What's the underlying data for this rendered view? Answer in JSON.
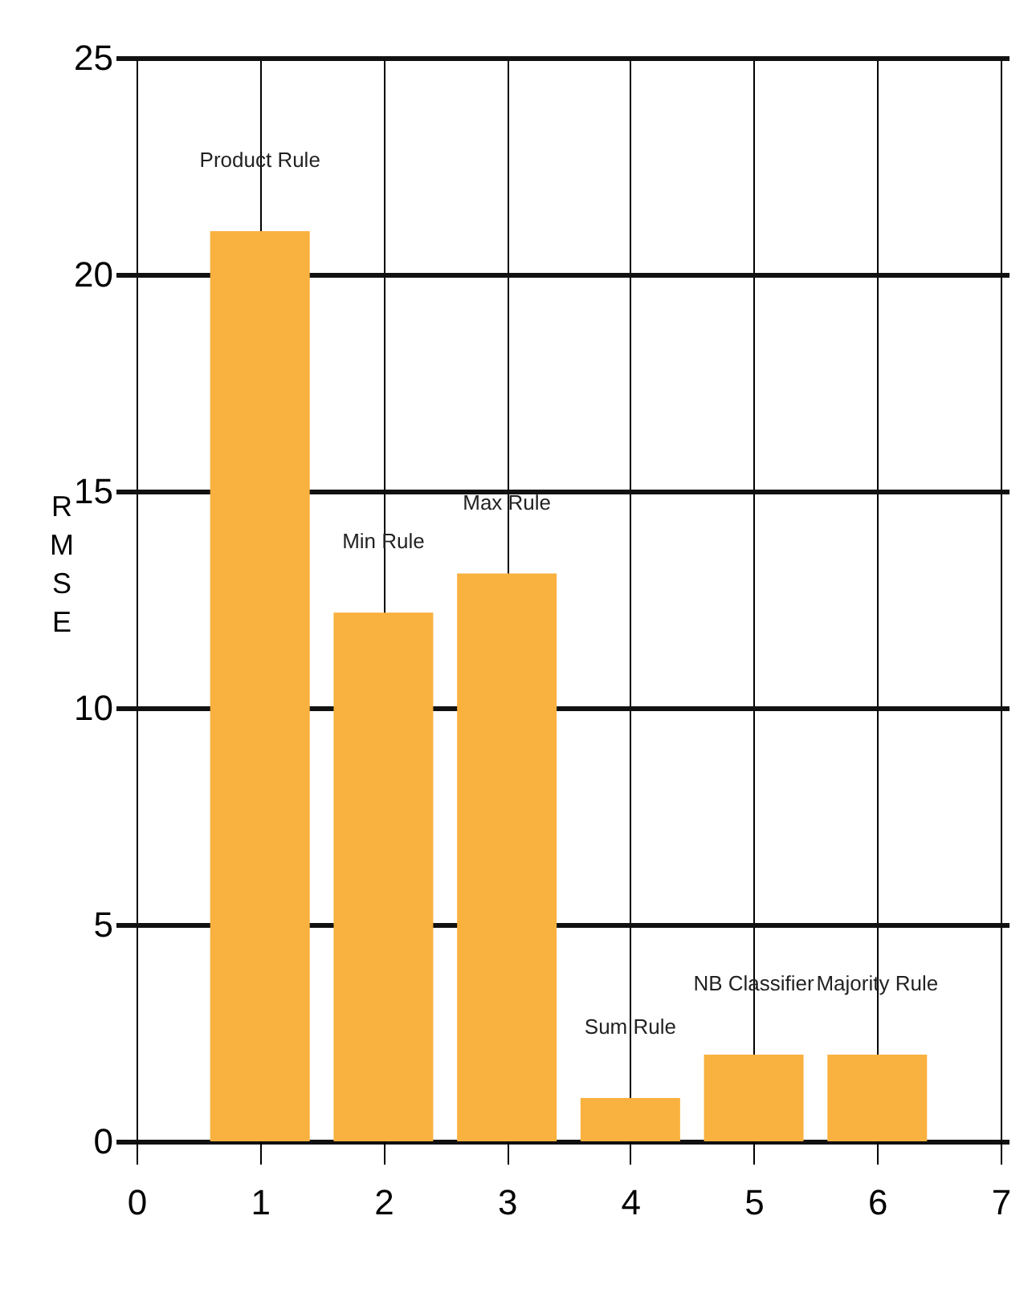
{
  "chart_data": {
    "type": "bar",
    "ylabel": "RMSE",
    "x": [
      1,
      2,
      3,
      4,
      5,
      6
    ],
    "values": [
      21,
      12.2,
      13.1,
      1,
      2,
      2
    ],
    "color": "#f9b13f",
    "xlim": [
      0,
      7
    ],
    "xticks": [
      0,
      1,
      2,
      3,
      4,
      5,
      6,
      7
    ],
    "ylim": [
      0,
      25
    ],
    "yticks": [
      0,
      5,
      10,
      15,
      20,
      25
    ],
    "grid": true,
    "annotations": [
      {
        "text": "Product Rule",
        "x": 1,
        "y": 21
      },
      {
        "text": "Min Rule",
        "x": 2,
        "y": 12.2
      },
      {
        "text": "Max Rule",
        "x": 3,
        "y": 13.1
      },
      {
        "text": "Sum Rule",
        "x": 4,
        "y": 1
      },
      {
        "text": "NB Classifier",
        "x": 5,
        "y": 2
      },
      {
        "text": "Majority Rule",
        "x": 6,
        "y": 2
      }
    ]
  }
}
